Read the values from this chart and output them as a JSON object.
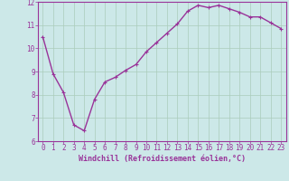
{
  "x": [
    0,
    1,
    2,
    3,
    4,
    5,
    6,
    7,
    8,
    9,
    10,
    11,
    12,
    13,
    14,
    15,
    16,
    17,
    18,
    19,
    20,
    21,
    22,
    23
  ],
  "y": [
    10.5,
    8.9,
    8.1,
    6.7,
    6.45,
    7.8,
    8.55,
    8.75,
    9.05,
    9.3,
    9.85,
    10.25,
    10.65,
    11.05,
    11.6,
    11.85,
    11.75,
    11.85,
    11.7,
    11.55,
    11.35,
    11.35,
    11.1,
    10.85
  ],
  "line_color": "#993399",
  "marker": "+",
  "marker_size": 3,
  "background_color": "#cce8e8",
  "grid_color": "#aaccbb",
  "xlabel": "Windchill (Refroidissement éolien,°C)",
  "xlabel_color": "#993399",
  "tick_color": "#993399",
  "axis_color": "#993399",
  "ylim": [
    6,
    12
  ],
  "xlim": [
    -0.5,
    23.5
  ],
  "yticks": [
    6,
    7,
    8,
    9,
    10,
    11,
    12
  ],
  "xticks": [
    0,
    1,
    2,
    3,
    4,
    5,
    6,
    7,
    8,
    9,
    10,
    11,
    12,
    13,
    14,
    15,
    16,
    17,
    18,
    19,
    20,
    21,
    22,
    23
  ],
  "xtick_labels": [
    "0",
    "1",
    "2",
    "3",
    "4",
    "5",
    "6",
    "7",
    "8",
    "9",
    "10",
    "11",
    "12",
    "13",
    "14",
    "15",
    "16",
    "17",
    "18",
    "19",
    "20",
    "21",
    "22",
    "23"
  ],
  "ytick_labels": [
    "6",
    "7",
    "8",
    "9",
    "10",
    "11",
    "12"
  ],
  "font_size": 5.5,
  "label_font_size": 6,
  "line_width": 1.0,
  "marker_edge_width": 0.8
}
